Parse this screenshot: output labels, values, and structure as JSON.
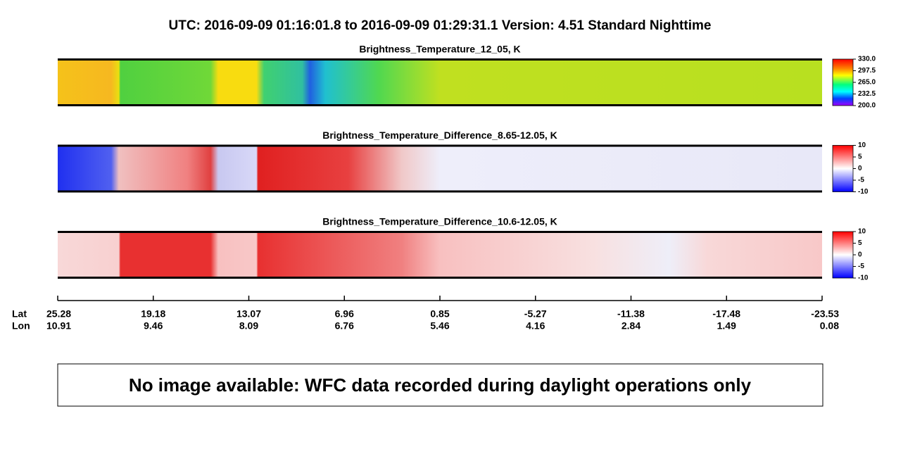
{
  "header": {
    "title": "UTC:  2016-09-09   01:16:01.8  to  2016-09-09   01:29:31.1    Version: 4.51  Standard Nighttime"
  },
  "panels": [
    {
      "title": "Brightness_Temperature_12_05, K",
      "colorbar_ticks": [
        {
          "value": 330,
          "label": "330.0"
        },
        297.5,
        {
          "value": 265,
          "label": "265.0"
        },
        232.5,
        {
          "value": 200,
          "label": "200.0"
        }
      ]
    },
    {
      "title": "Brightness_Temperature_Difference_8.65-12.05, K",
      "colorbar_ticks": [
        10,
        5,
        0,
        -5,
        -10
      ]
    },
    {
      "title": "Brightness_Temperature_Difference_10.6-12.05, K",
      "colorbar_ticks": [
        10,
        5,
        0,
        -5,
        -10
      ]
    }
  ],
  "x_axis": {
    "lat_label": "Lat",
    "lon_label": "Lon",
    "lat": [
      25.28,
      19.18,
      13.07,
      6.96,
      0.85,
      -5.27,
      -11.38,
      -17.48,
      -23.53
    ],
    "lon": [
      10.91,
      9.46,
      8.09,
      6.76,
      5.46,
      4.16,
      2.84,
      1.49,
      0.08
    ]
  },
  "message": "No image available: WFC data recorded during daylight operations only"
}
